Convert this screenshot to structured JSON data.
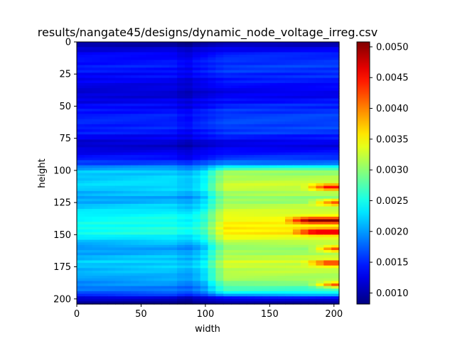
{
  "chart_data": {
    "type": "heatmap",
    "title": "results/nangate45/designs/dynamic_node_voltage_irreg.csv",
    "xlabel": "width",
    "ylabel": "height",
    "xlim": [
      0,
      204
    ],
    "ylim": [
      204,
      0
    ],
    "x_ticks": [
      "0",
      "50",
      "100",
      "150",
      "200"
    ],
    "y_ticks": [
      "0",
      "25",
      "50",
      "75",
      "100",
      "125",
      "150",
      "175",
      "200"
    ],
    "colormap": "jet",
    "colorbar": {
      "vmin": 0.00082,
      "vmax": 0.00508,
      "ticks": [
        "0.0010",
        "0.0015",
        "0.0020",
        "0.0025",
        "0.0030",
        "0.0035",
        "0.0040",
        "0.0045",
        "0.0050"
      ]
    },
    "row_profile": [
      {
        "y": 0,
        "left": 0.00085,
        "right": 0.0009
      },
      {
        "y": 4,
        "left": 0.0011,
        "right": 0.0012
      },
      {
        "y": 10,
        "left": 0.00135,
        "right": 0.0015
      },
      {
        "y": 20,
        "left": 0.00145,
        "right": 0.0016
      },
      {
        "y": 30,
        "left": 0.0013,
        "right": 0.00145
      },
      {
        "y": 40,
        "left": 0.00115,
        "right": 0.00125
      },
      {
        "y": 50,
        "left": 0.00135,
        "right": 0.0015
      },
      {
        "y": 60,
        "left": 0.0015,
        "right": 0.00165
      },
      {
        "y": 70,
        "left": 0.00145,
        "right": 0.0016
      },
      {
        "y": 80,
        "left": 0.0011,
        "right": 0.0012
      },
      {
        "y": 90,
        "left": 0.0014,
        "right": 0.00155
      },
      {
        "y": 95,
        "left": 0.00165,
        "right": 0.0019
      },
      {
        "y": 100,
        "left": 0.00215,
        "right": 0.003
      },
      {
        "y": 112,
        "left": 0.00225,
        "right": 0.0033
      },
      {
        "y": 122,
        "left": 0.002,
        "right": 0.003
      },
      {
        "y": 135,
        "left": 0.0024,
        "right": 0.0034
      },
      {
        "y": 148,
        "left": 0.0025,
        "right": 0.0036
      },
      {
        "y": 160,
        "left": 0.00195,
        "right": 0.003
      },
      {
        "y": 172,
        "left": 0.0022,
        "right": 0.0033
      },
      {
        "y": 185,
        "left": 0.002,
        "right": 0.0031
      },
      {
        "y": 195,
        "left": 0.00175,
        "right": 0.0025
      },
      {
        "y": 200,
        "left": 0.0011,
        "right": 0.0012
      },
      {
        "y": 204,
        "left": 0.00085,
        "right": 0.0009
      }
    ],
    "hotspots": [
      {
        "y": 113,
        "x_start": 175,
        "peak": 0.0045
      },
      {
        "y": 125,
        "x_start": 180,
        "peak": 0.0042
      },
      {
        "y": 139,
        "x_start": 160,
        "peak": 0.00505
      },
      {
        "y": 148,
        "x_start": 165,
        "peak": 0.0048
      },
      {
        "y": 161,
        "x_start": 180,
        "peak": 0.0042
      },
      {
        "y": 172,
        "x_start": 175,
        "peak": 0.0044
      },
      {
        "y": 189,
        "x_start": 180,
        "peak": 0.0042
      }
    ]
  }
}
